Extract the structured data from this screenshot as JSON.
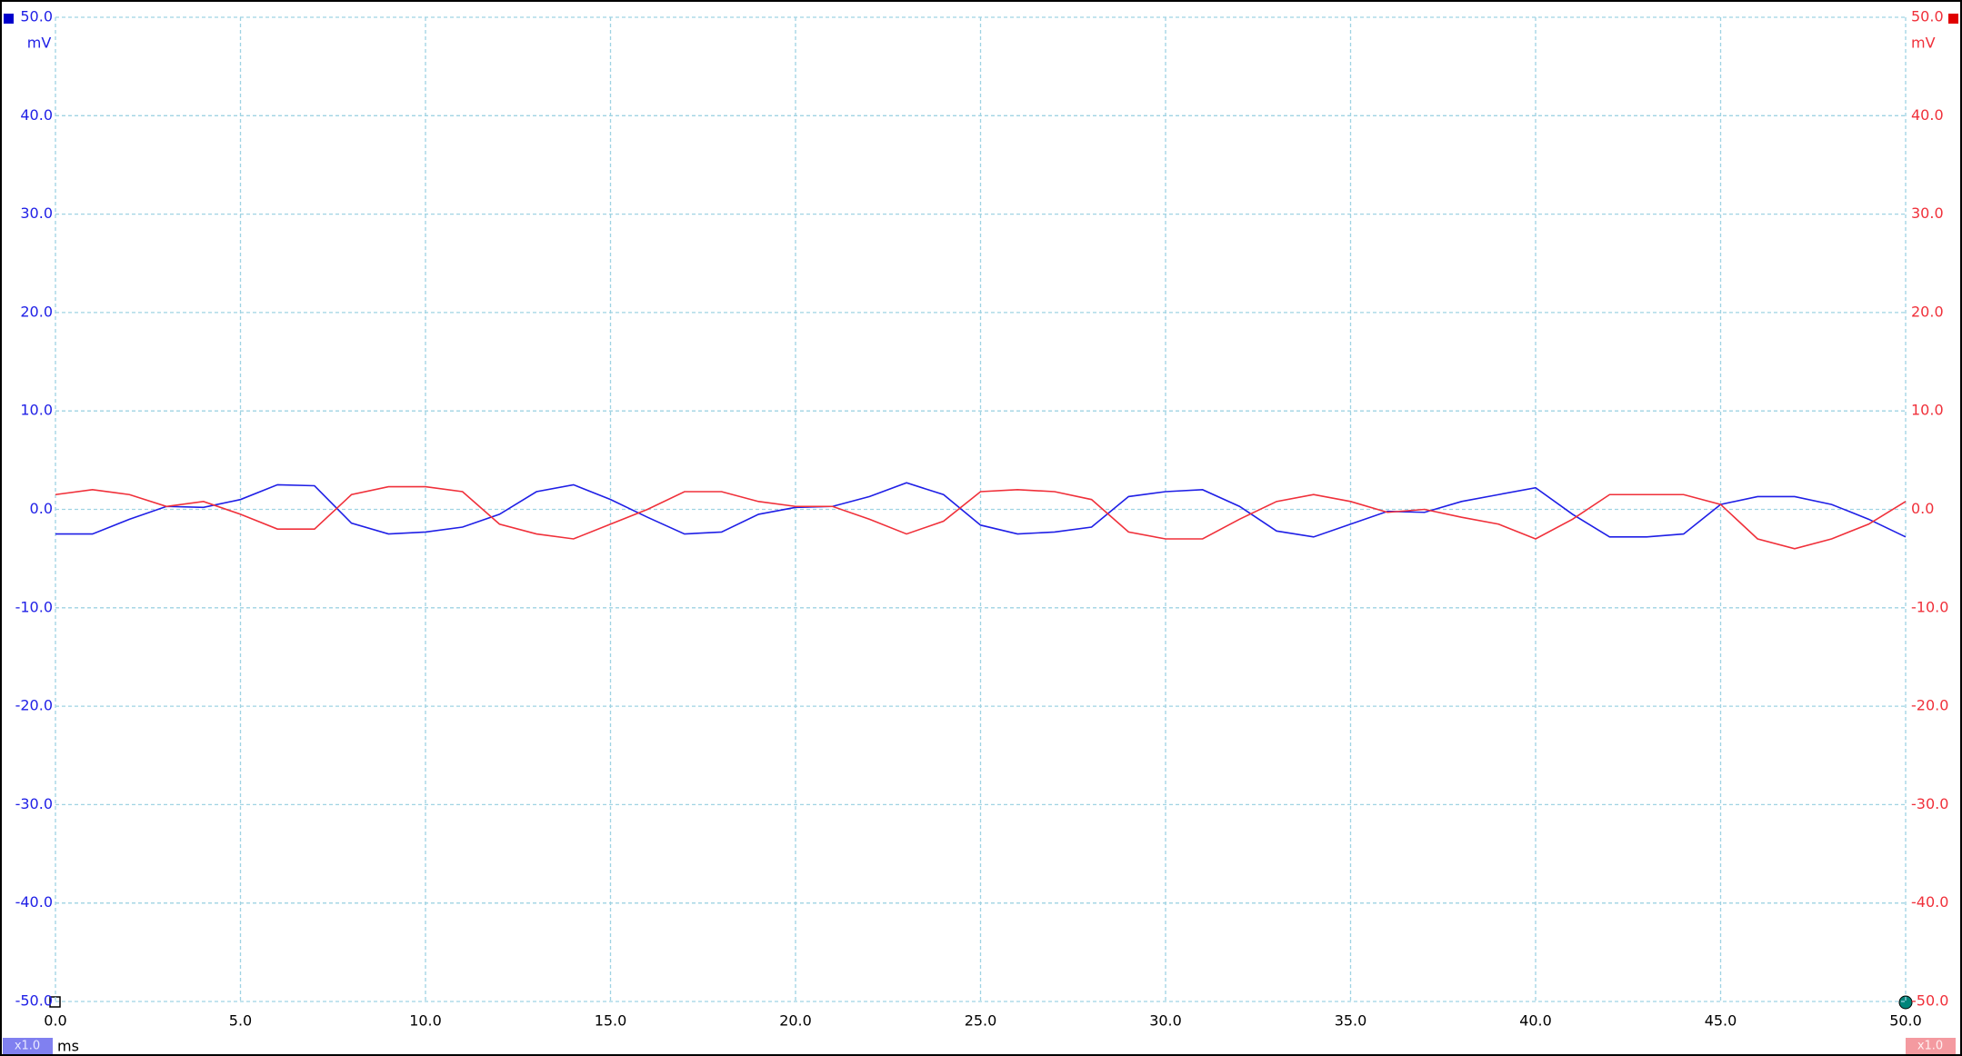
{
  "chart_data": {
    "type": "line",
    "x_unit": "ms",
    "y_unit": "mV",
    "y2_unit": "mV",
    "x": [
      0,
      1,
      2,
      3,
      4,
      5,
      6,
      7,
      8,
      9,
      10,
      11,
      12,
      13,
      14,
      15,
      16,
      17,
      18,
      19,
      20,
      21,
      22,
      23,
      24,
      25,
      26,
      27,
      28,
      29,
      30,
      31,
      32,
      33,
      34,
      35,
      36,
      37,
      38,
      39,
      40,
      41,
      42,
      43,
      44,
      45,
      46,
      47,
      48,
      49,
      50
    ],
    "series": [
      {
        "color": "#1f1fe6",
        "axis": "y",
        "scale_label": "x1.0",
        "values": [
          -2.5,
          -2.5,
          -1.0,
          0.3,
          0.2,
          1.0,
          2.5,
          2.4,
          -1.4,
          -2.5,
          -2.3,
          -1.8,
          -0.5,
          1.8,
          2.5,
          1.0,
          -0.8,
          -2.5,
          -2.3,
          -0.5,
          0.2,
          0.3,
          1.3,
          2.7,
          1.5,
          -1.6,
          -2.5,
          -2.3,
          -1.8,
          1.3,
          1.8,
          2.0,
          0.3,
          -2.2,
          -2.8,
          -1.5,
          -0.2,
          -0.3,
          0.8,
          1.5,
          2.2,
          -0.5,
          -2.8,
          -2.8,
          -2.5,
          0.5,
          1.3,
          1.3,
          0.5,
          -1.0,
          -2.8
        ]
      },
      {
        "color": "#f0303a",
        "axis": "y2",
        "scale_label": "x1.0",
        "values": [
          1.5,
          2.0,
          1.5,
          0.3,
          0.8,
          -0.5,
          -2.0,
          -2.0,
          1.5,
          2.3,
          2.3,
          1.8,
          -1.5,
          -2.5,
          -3.0,
          -1.5,
          0.0,
          1.8,
          1.8,
          0.8,
          0.3,
          0.3,
          -1.0,
          -2.5,
          -1.2,
          1.8,
          2.0,
          1.8,
          1.0,
          -2.3,
          -3.0,
          -3.0,
          -1.0,
          0.8,
          1.5,
          0.8,
          -0.3,
          0.0,
          -0.8,
          -1.5,
          -3.0,
          -1.0,
          1.5,
          1.5,
          1.5,
          0.5,
          -3.0,
          -4.0,
          -3.0,
          -1.5,
          0.8
        ]
      }
    ],
    "xlim": [
      0,
      50
    ],
    "xticks": [
      {
        "value": 0,
        "label": "0.0"
      },
      {
        "value": 5,
        "label": "5.0"
      },
      {
        "value": 10,
        "label": "10.0"
      },
      {
        "value": 15,
        "label": "15.0"
      },
      {
        "value": 20,
        "label": "20.0"
      },
      {
        "value": 25,
        "label": "25.0"
      },
      {
        "value": 30,
        "label": "30.0"
      },
      {
        "value": 35,
        "label": "35.0"
      },
      {
        "value": 40,
        "label": "40.0"
      },
      {
        "value": 45,
        "label": "45.0"
      },
      {
        "value": 50,
        "label": "50.0"
      }
    ],
    "ylim": [
      -50,
      50
    ],
    "yticks": [
      {
        "value": 50,
        "label": "50.0"
      },
      {
        "value": 40,
        "label": "40.0"
      },
      {
        "value": 30,
        "label": "30.0"
      },
      {
        "value": 20,
        "label": "20.0"
      },
      {
        "value": 10,
        "label": "10.0"
      },
      {
        "value": 0,
        "label": "0.0"
      },
      {
        "value": -10,
        "label": "-10.0"
      },
      {
        "value": -20,
        "label": "-20.0"
      },
      {
        "value": -30,
        "label": "-30.0"
      },
      {
        "value": -40,
        "label": "-40.0"
      },
      {
        "value": -50,
        "label": "-50.0"
      }
    ],
    "y2lim": [
      -50,
      50
    ],
    "y2ticks": [
      {
        "value": 50,
        "label": "50.0"
      },
      {
        "value": 40,
        "label": "40.0"
      },
      {
        "value": 30,
        "label": "30.0"
      },
      {
        "value": 20,
        "label": "20.0"
      },
      {
        "value": 10,
        "label": "10.0"
      },
      {
        "value": 0,
        "label": "0.0"
      },
      {
        "value": -10,
        "label": "-10.0"
      },
      {
        "value": -20,
        "label": "-20.0"
      },
      {
        "value": -30,
        "label": "-30.0"
      },
      {
        "value": -40,
        "label": "-40.0"
      },
      {
        "value": -50,
        "label": "-50.0"
      }
    ],
    "grid": true
  }
}
